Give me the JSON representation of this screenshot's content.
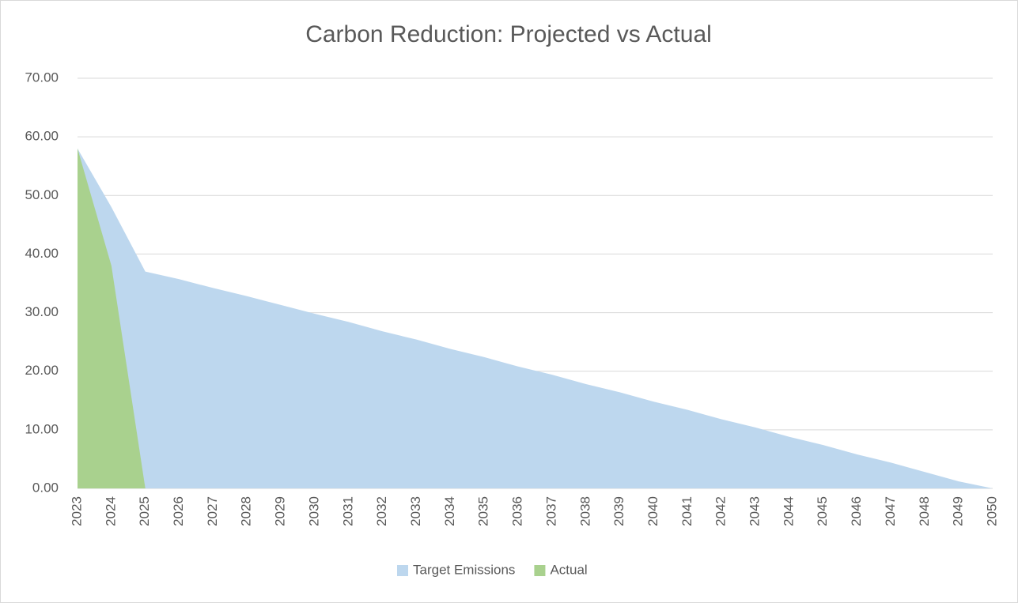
{
  "chart_data": {
    "type": "area",
    "title": "Carbon Reduction: Projected vs Actual",
    "categories": [
      "2023",
      "2024",
      "2025",
      "2026",
      "2027",
      "2028",
      "2029",
      "2030",
      "2031",
      "2032",
      "2033",
      "2034",
      "2035",
      "2036",
      "2037",
      "2038",
      "2039",
      "2040",
      "2041",
      "2042",
      "2043",
      "2044",
      "2045",
      "2046",
      "2047",
      "2048",
      "2049",
      "2050"
    ],
    "series": [
      {
        "name": "Target Emissions",
        "color": "#bdd7ee",
        "values": [
          58,
          48,
          37,
          35.7,
          34.2,
          32.8,
          31.3,
          29.8,
          28.4,
          26.8,
          25.4,
          23.8,
          22.4,
          20.8,
          19.4,
          17.8,
          16.4,
          14.8,
          13.4,
          11.8,
          10.4,
          8.8,
          7.4,
          5.8,
          4.4,
          2.8,
          1.2,
          0
        ]
      },
      {
        "name": "Actual",
        "color": "#a9d18e",
        "values": [
          58,
          38,
          0,
          null,
          null,
          null,
          null,
          null,
          null,
          null,
          null,
          null,
          null,
          null,
          null,
          null,
          null,
          null,
          null,
          null,
          null,
          null,
          null,
          null,
          null,
          null,
          null,
          null
        ]
      }
    ],
    "ylim": [
      0,
      70
    ],
    "yticks": [
      {
        "value": 0,
        "label": "0.00"
      },
      {
        "value": 10,
        "label": "10.00"
      },
      {
        "value": 20,
        "label": "20.00"
      },
      {
        "value": 30,
        "label": "30.00"
      },
      {
        "value": 40,
        "label": "40.00"
      },
      {
        "value": 50,
        "label": "50.00"
      },
      {
        "value": 60,
        "label": "60.00"
      },
      {
        "value": 70,
        "label": "70.00"
      }
    ],
    "grid": true,
    "legend": "bottom"
  }
}
